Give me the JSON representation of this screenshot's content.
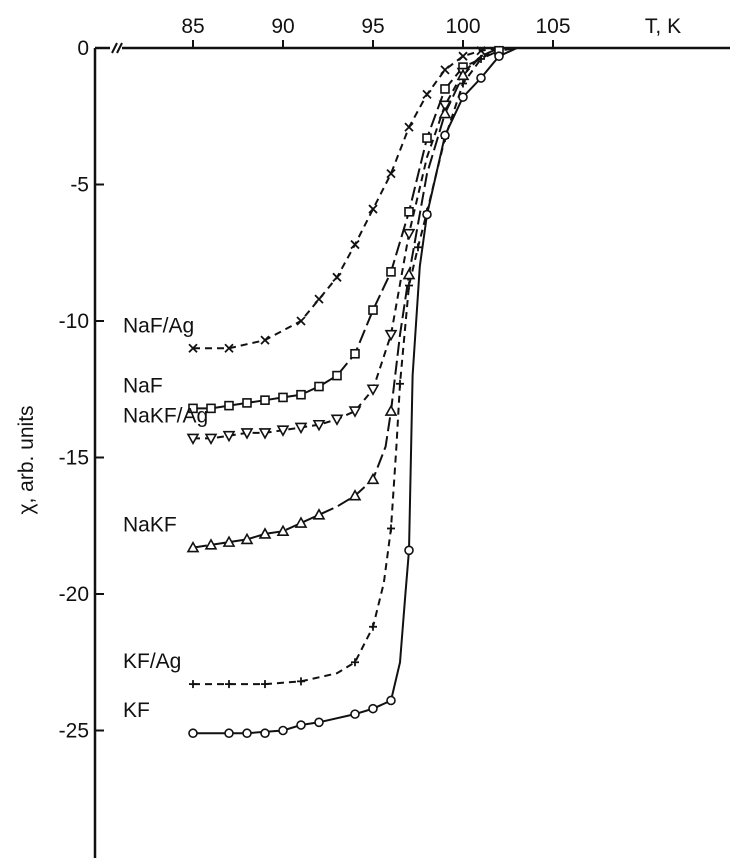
{
  "chart_data": {
    "type": "line",
    "title": "",
    "xlabel": "T, K",
    "ylabel": "χ, arb. units",
    "xlim": [
      80,
      108
    ],
    "ylim": [
      -28.5,
      0
    ],
    "x_ticks": [
      85,
      90,
      95,
      100,
      105
    ],
    "x_tick_labels": [
      "85",
      "90",
      "95",
      "100",
      "105"
    ],
    "y_ticks": [
      0,
      -5,
      -10,
      -15,
      -20,
      -25
    ],
    "y_tick_labels": [
      "0",
      "-5",
      "-10",
      "-15",
      "-20",
      "-25"
    ],
    "x_axis_position": "top",
    "grid": false,
    "legend": "none (series labelled directly at left end of curves)",
    "series": [
      {
        "name": "NaF/Ag",
        "marker": "x",
        "line_style": "dashed",
        "points": [
          [
            85,
            -11.0
          ],
          [
            87,
            -11.0
          ],
          [
            89,
            -10.7
          ],
          [
            91,
            -10.0
          ],
          [
            92,
            -9.2
          ],
          [
            93,
            -8.4
          ],
          [
            94,
            -7.2
          ],
          [
            95,
            -5.9
          ],
          [
            96,
            -4.6
          ],
          [
            97,
            -2.9
          ],
          [
            98,
            -1.7
          ],
          [
            99,
            -0.8
          ],
          [
            100,
            -0.3
          ],
          [
            101,
            -0.1
          ]
        ],
        "curve": [
          [
            85,
            -11.0
          ],
          [
            87,
            -11.0
          ],
          [
            89,
            -10.7
          ],
          [
            91,
            -10.0
          ],
          [
            92,
            -9.2
          ],
          [
            93,
            -8.4
          ],
          [
            94,
            -7.2
          ],
          [
            95,
            -5.9
          ],
          [
            96,
            -4.6
          ],
          [
            97,
            -2.9
          ],
          [
            98,
            -1.7
          ],
          [
            99,
            -0.8
          ],
          [
            100,
            -0.3
          ],
          [
            101,
            -0.1
          ],
          [
            102,
            0
          ]
        ]
      },
      {
        "name": "NaF",
        "marker": "square",
        "line_style": "long-dash",
        "points": [
          [
            85,
            -13.2
          ],
          [
            86,
            -13.2
          ],
          [
            87,
            -13.1
          ],
          [
            88,
            -13.0
          ],
          [
            89,
            -12.9
          ],
          [
            90,
            -12.8
          ],
          [
            91,
            -12.7
          ],
          [
            92,
            -12.4
          ],
          [
            93,
            -12.0
          ],
          [
            94,
            -11.2
          ],
          [
            95,
            -9.6
          ],
          [
            96,
            -8.2
          ],
          [
            97,
            -6.0
          ],
          [
            98,
            -3.3
          ],
          [
            99,
            -1.5
          ],
          [
            100,
            -0.7
          ],
          [
            102,
            -0.1
          ]
        ],
        "curve": [
          [
            85,
            -13.2
          ],
          [
            86,
            -13.2
          ],
          [
            87,
            -13.1
          ],
          [
            88,
            -13.0
          ],
          [
            89,
            -12.9
          ],
          [
            90,
            -12.8
          ],
          [
            91,
            -12.7
          ],
          [
            92,
            -12.4
          ],
          [
            93,
            -12.0
          ],
          [
            94,
            -11.2
          ],
          [
            95,
            -9.6
          ],
          [
            96,
            -8.2
          ],
          [
            97,
            -6.0
          ],
          [
            98,
            -3.3
          ],
          [
            99,
            -1.5
          ],
          [
            100,
            -0.7
          ],
          [
            102,
            -0.1
          ],
          [
            103,
            0
          ]
        ]
      },
      {
        "name": "NaKF/Ag",
        "marker": "triangle-down",
        "line_style": "dashed",
        "points": [
          [
            85,
            -14.3
          ],
          [
            86,
            -14.3
          ],
          [
            87,
            -14.2
          ],
          [
            88,
            -14.1
          ],
          [
            89,
            -14.1
          ],
          [
            90,
            -14.0
          ],
          [
            91,
            -13.9
          ],
          [
            92,
            -13.8
          ],
          [
            93,
            -13.6
          ],
          [
            94,
            -13.3
          ],
          [
            95,
            -12.5
          ],
          [
            96,
            -10.5
          ],
          [
            97,
            -6.8
          ],
          [
            99,
            -2.1
          ],
          [
            100,
            -0.9
          ]
        ],
        "curve": [
          [
            85,
            -14.3
          ],
          [
            86,
            -14.3
          ],
          [
            87,
            -14.2
          ],
          [
            88,
            -14.1
          ],
          [
            89,
            -14.1
          ],
          [
            90,
            -14.0
          ],
          [
            91,
            -13.9
          ],
          [
            92,
            -13.8
          ],
          [
            93,
            -13.6
          ],
          [
            94,
            -13.3
          ],
          [
            95,
            -12.5
          ],
          [
            96,
            -10.5
          ],
          [
            97,
            -6.8
          ],
          [
            98,
            -4.0
          ],
          [
            99,
            -2.1
          ],
          [
            100,
            -0.9
          ],
          [
            101,
            -0.3
          ],
          [
            102,
            0
          ]
        ]
      },
      {
        "name": "NaKF",
        "marker": "triangle-up",
        "line_style": "long-dash",
        "points": [
          [
            85,
            -18.3
          ],
          [
            86,
            -18.2
          ],
          [
            87,
            -18.1
          ],
          [
            88,
            -18.0
          ],
          [
            89,
            -17.8
          ],
          [
            90,
            -17.7
          ],
          [
            91,
            -17.4
          ],
          [
            92,
            -17.1
          ],
          [
            94,
            -16.4
          ],
          [
            95,
            -15.8
          ],
          [
            96,
            -13.3
          ],
          [
            97,
            -8.3
          ],
          [
            99,
            -2.4
          ],
          [
            100,
            -1.0
          ]
        ],
        "curve": [
          [
            85,
            -18.3
          ],
          [
            86,
            -18.2
          ],
          [
            87,
            -18.1
          ],
          [
            88,
            -18.0
          ],
          [
            89,
            -17.8
          ],
          [
            90,
            -17.7
          ],
          [
            91,
            -17.4
          ],
          [
            92,
            -17.1
          ],
          [
            93,
            -16.8
          ],
          [
            94,
            -16.4
          ],
          [
            95,
            -15.8
          ],
          [
            95.7,
            -14.6
          ],
          [
            96,
            -13.3
          ],
          [
            96.5,
            -10.5
          ],
          [
            97,
            -8.3
          ],
          [
            98,
            -4.6
          ],
          [
            99,
            -2.4
          ],
          [
            100,
            -1.0
          ],
          [
            101,
            -0.3
          ],
          [
            102,
            0
          ]
        ]
      },
      {
        "name": "KF/Ag",
        "marker": "plus",
        "line_style": "dashed",
        "points": [
          [
            85,
            -23.3
          ],
          [
            87,
            -23.3
          ],
          [
            89,
            -23.3
          ],
          [
            91,
            -23.2
          ],
          [
            94,
            -22.5
          ],
          [
            95,
            -21.2
          ],
          [
            96,
            -17.6
          ],
          [
            96.5,
            -12.3
          ],
          [
            97,
            -8.7
          ],
          [
            97.5,
            -7.3
          ],
          [
            98,
            -6.0
          ],
          [
            99,
            -3.3
          ],
          [
            100,
            -1.3
          ],
          [
            101,
            -0.4
          ]
        ],
        "curve": [
          [
            85,
            -23.3
          ],
          [
            87,
            -23.3
          ],
          [
            89,
            -23.3
          ],
          [
            91,
            -23.2
          ],
          [
            93,
            -22.9
          ],
          [
            94,
            -22.5
          ],
          [
            95,
            -21.2
          ],
          [
            95.6,
            -19.6
          ],
          [
            96,
            -17.6
          ],
          [
            96.3,
            -14.6
          ],
          [
            96.5,
            -12.3
          ],
          [
            97,
            -8.7
          ],
          [
            97.5,
            -7.3
          ],
          [
            98,
            -6.0
          ],
          [
            99,
            -3.3
          ],
          [
            100,
            -1.3
          ],
          [
            101,
            -0.4
          ],
          [
            102,
            0
          ]
        ]
      },
      {
        "name": "KF",
        "marker": "circle",
        "line_style": "solid",
        "points": [
          [
            85,
            -25.1
          ],
          [
            87,
            -25.1
          ],
          [
            88,
            -25.1
          ],
          [
            89,
            -25.1
          ],
          [
            90,
            -25.0
          ],
          [
            91,
            -24.8
          ],
          [
            92,
            -24.7
          ],
          [
            94,
            -24.4
          ],
          [
            95,
            -24.2
          ],
          [
            96,
            -23.9
          ],
          [
            97,
            -18.4
          ],
          [
            98,
            -6.1
          ],
          [
            99,
            -3.2
          ],
          [
            100,
            -1.8
          ],
          [
            101,
            -1.1
          ],
          [
            102,
            -0.3
          ]
        ],
        "curve": [
          [
            85,
            -25.1
          ],
          [
            88,
            -25.1
          ],
          [
            90,
            -25.0
          ],
          [
            91,
            -24.8
          ],
          [
            92,
            -24.7
          ],
          [
            94,
            -24.4
          ],
          [
            95,
            -24.2
          ],
          [
            96,
            -23.9
          ],
          [
            96.5,
            -22.5
          ],
          [
            96.8,
            -20.0
          ],
          [
            97,
            -18.4
          ],
          [
            97.2,
            -12.0
          ],
          [
            97.6,
            -8.0
          ],
          [
            98,
            -6.1
          ],
          [
            99,
            -3.2
          ],
          [
            100,
            -1.8
          ],
          [
            101,
            -1.1
          ],
          [
            102,
            -0.3
          ],
          [
            103,
            0
          ]
        ]
      }
    ]
  }
}
